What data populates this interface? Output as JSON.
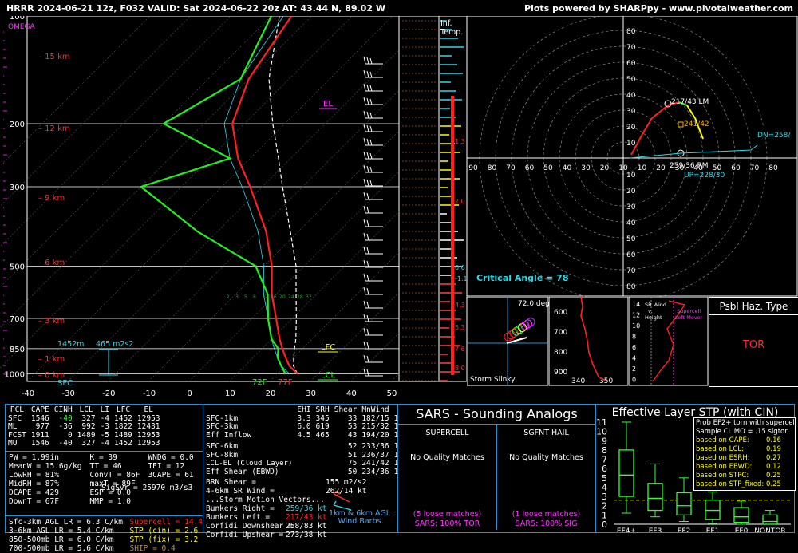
{
  "header": {
    "title": "HRRR 2024-06-21 12z, F032  VALID: Sat 2024-06-22 20z  AT: 43.44 N, 89.02 W",
    "credit": "Plots powered by SHARPpy - www.pivotalweather.com"
  },
  "skewt": {
    "omega_label": "OMEGA",
    "pressure_ticks": [
      "100",
      "200",
      "300",
      "500",
      "700",
      "850",
      "1000"
    ],
    "height_labels": [
      "15 km",
      "12 km",
      "9 km",
      "6 km",
      "3 km",
      "1 km",
      "0 km"
    ],
    "temp_ticks": [
      "-40",
      "-30",
      "-20",
      "-10",
      "0",
      "10",
      "20",
      "30",
      "40",
      "50"
    ],
    "el_label": "EL",
    "lfc_label": "LFC",
    "lcl_label": "LCL",
    "sfc_label": "SFC",
    "srh_depth": "1452m",
    "srh_value": "465 m2s2",
    "sfc_dewpoint": "72F",
    "sfc_temp": "77F",
    "inf_temp_label": "Inf.\nTemp.",
    "inf_values": [
      "1.3",
      "2.0",
      "0.6",
      "-1.1",
      "4.3",
      "5.3",
      "7.6",
      "8.0"
    ],
    "mixing_ratios": [
      "2",
      "3",
      "5",
      "8",
      "12",
      "16",
      "20",
      "24",
      "28",
      "32"
    ]
  },
  "hodograph": {
    "ring_labels": [
      "80",
      "70",
      "60",
      "50",
      "40",
      "30",
      "20",
      "10"
    ],
    "x_labels": [
      "90",
      "80",
      "70",
      "60",
      "50",
      "40",
      "30",
      "20",
      "10",
      "10",
      "20",
      "30",
      "40",
      "50",
      "60",
      "70",
      "80"
    ],
    "lm_label": "217/43 LM",
    "rm_label": "259/36 RM",
    "mean_label": "241/42",
    "dn_label": "DN=258/",
    "up_label": "UP=228/30",
    "critical_angle": "Critical Angle = 78"
  },
  "storm_slinky": {
    "title": "Storm Slinky",
    "angle": "72.0 deg"
  },
  "theta_panel": {
    "y_ticks": [
      "600",
      "700",
      "800",
      "900"
    ],
    "x_ticks": [
      "340",
      "350"
    ]
  },
  "srwind_panel": {
    "y_ticks": [
      "14",
      "12",
      "10",
      "8",
      "6",
      "4",
      "2",
      "0"
    ],
    "label1": "SR Wind\nv.\nHeight",
    "label2": "Supercell\nLeft Mover"
  },
  "hazard": {
    "title": "Psbl Haz. Type",
    "value": "TOR"
  },
  "parcels": {
    "headers": [
      "PCL",
      "CAPE",
      "CINH",
      "LCL",
      "LI",
      "LFC",
      "EL"
    ],
    "rows": [
      [
        "SFC",
        "1546",
        "-40",
        "327",
        "-4",
        "1452",
        "12953"
      ],
      [
        "ML",
        "977",
        "-36",
        "992",
        "-3",
        "1822",
        "12431"
      ],
      [
        "FCST",
        "1911",
        "0",
        "1489",
        "-5",
        "1489",
        "12953"
      ],
      [
        "MU",
        "1546",
        "-40",
        "327",
        "-4",
        "1452",
        "12953"
      ]
    ]
  },
  "thermo": {
    "col1": [
      "PW = 1.99in",
      "MeanW = 15.6g/kg",
      "LowRH = 81%",
      "MidRH = 87%",
      "DCAPE = 429",
      "DownT = 67F"
    ],
    "col2": [
      "K = 39",
      "TT = 46",
      "ConvT = 86F",
      "maxT = 89F",
      "ESP = 0.0",
      "MMP = 1.0"
    ],
    "col3": [
      "WNDG = 0.0",
      "TEI = 12",
      "3CAPE = 61",
      "",
      "",
      ""
    ],
    "sigsvr": "SigSvr = 25970 m3/s3"
  },
  "lapse": {
    "rates": [
      "Sfc-3km AGL LR = 6.3 C/km",
      "3-6km AGL LR = 5.4 C/km",
      "850-500mb LR = 6.0 C/km",
      "700-500mb LR = 5.6 C/km"
    ],
    "supercell": "Supercell = 14.4",
    "stp_cin": "STP (cin) = 2.6",
    "stp_fix": "STP (fix) = 3.2",
    "ship": "SHIP = 0.4"
  },
  "kinematics": {
    "headers": [
      "",
      "EHI",
      "SRH",
      "Shear",
      "MnWind",
      "SRW"
    ],
    "rows": [
      [
        "SFC-1km",
        "3.3",
        "345",
        "33",
        "182/15",
        "103/36"
      ],
      [
        "SFC-3km",
        "6.0",
        "619",
        "53",
        "215/32",
        "139/26"
      ],
      [
        "Eff Inflow",
        "4.5",
        "465",
        "43",
        "194/20",
        "113/33"
      ],
      [
        "SFC-6km",
        "",
        "",
        "52",
        "233/36",
        "155/16"
      ],
      [
        "SFC-8km",
        "",
        "",
        "51",
        "236/37",
        "161/15"
      ],
      [
        "LCL-EL (Cloud Layer)",
        "",
        "",
        "75",
        "241/42",
        "187/14"
      ],
      [
        "Eff Shear (EBWD)",
        "",
        "",
        "50",
        "234/36",
        "157/16"
      ]
    ],
    "brn": [
      "BRN Shear =",
      "155 m2/s2"
    ],
    "sr46": [
      "4-6km SR Wind =",
      "262/14 kt"
    ],
    "motion_title": "...Storm Motion Vectors...",
    "motions": [
      [
        "Bunkers Right =",
        "259/36 kt"
      ],
      [
        "Bunkers Left =",
        "217/43 kt"
      ],
      [
        "Corfidi Downshear =",
        "258/83 kt"
      ],
      [
        "Corfidi Upshear =",
        "273/38 kt"
      ]
    ],
    "barbs_label": "1km & 6km AGL\nWind Barbs"
  },
  "sars": {
    "title": "SARS - Sounding Analogs",
    "supercell_header": "SUPERCELL",
    "hail_header": "SGFNT HAIL",
    "supercell_match": "No Quality Matches",
    "hail_match": "No Quality Matches",
    "supercell_loose": "(5 loose matches)",
    "hail_loose": "(1 loose matches)",
    "supercell_pct": "SARS: 100% TOR",
    "hail_pct": "SARS: 100% SIG"
  },
  "stp_panel": {
    "title": "Effective Layer STP (with CIN)",
    "prob_title": "Prob EF2+ torn with supercell",
    "climo": "Sample CLIMO = .15 sigtor",
    "probs": [
      [
        "based on CAPE:",
        "0.16"
      ],
      [
        "based on LCL:",
        "0.19"
      ],
      [
        "based on ESRH:",
        "0.27"
      ],
      [
        "based on EBWD:",
        "0.12"
      ],
      [
        "based on STPC:",
        "0.25"
      ],
      [
        "based on STP_fixed:",
        "0.25"
      ]
    ],
    "y_ticks": [
      "11",
      "10",
      "9",
      "8",
      "7",
      "6",
      "5",
      "4",
      "3",
      "2",
      "1",
      "0"
    ],
    "categories": [
      "EF4+",
      "EF3",
      "EF2",
      "EF1",
      "EF0",
      "NONTOR"
    ]
  },
  "chart_data": [
    {
      "type": "line",
      "title": "Skew-T",
      "pressure_ticks": [
        100,
        200,
        300,
        500,
        700,
        850,
        1000
      ],
      "temperature_ticks": [
        -40,
        -30,
        -20,
        -10,
        0,
        10,
        20,
        30,
        40,
        50
      ],
      "series": [
        {
          "name": "temperature",
          "pressure": [
            1000,
            950,
            900,
            850,
            800,
            700,
            600,
            500,
            400,
            300,
            250,
            200,
            150,
            100
          ],
          "temp_c": [
            25,
            21,
            18,
            15,
            12,
            6,
            -1,
            -8,
            -18,
            -33,
            -43,
            -53,
            -60,
            -65
          ]
        },
        {
          "name": "dewpoint",
          "pressure": [
            1000,
            950,
            900,
            850,
            800,
            700,
            600,
            500,
            400,
            300,
            250,
            200,
            150,
            100
          ],
          "temp_c": [
            22,
            19,
            16,
            14,
            10,
            4,
            -2,
            -12,
            -35,
            -60,
            -45,
            -70,
            -62,
            -70
          ]
        }
      ]
    },
    {
      "type": "line",
      "title": "Hodograph",
      "series": [
        {
          "name": "hodograph",
          "u": [
            5,
            12,
            18,
            28,
            35,
            40,
            45,
            50
          ],
          "v": [
            2,
            15,
            25,
            33,
            35,
            33,
            25,
            12
          ]
        }
      ]
    },
    {
      "type": "bar",
      "title": "Effective Layer STP (with CIN)",
      "categories": [
        "EF4+",
        "EF3",
        "EF2",
        "EF1",
        "EF0",
        "NONTOR"
      ],
      "boxes": [
        {
          "whisker_low": 1.2,
          "q1": 3.0,
          "median": 5.3,
          "q3": 8.0,
          "whisker_high": 11.0
        },
        {
          "whisker_low": 0.8,
          "q1": 1.5,
          "median": 2.8,
          "q3": 4.4,
          "whisker_high": 6.5
        },
        {
          "whisker_low": 0.3,
          "q1": 1.0,
          "median": 2.0,
          "q3": 3.4,
          "whisker_high": 5.0
        },
        {
          "whisker_low": 0.1,
          "q1": 0.5,
          "median": 1.5,
          "q3": 2.6,
          "whisker_high": 3.5
        },
        {
          "whisker_low": 0.0,
          "q1": 0.2,
          "median": 0.8,
          "q3": 1.8,
          "whisker_high": 2.5
        },
        {
          "whisker_low": 0.0,
          "q1": 0.0,
          "median": 0.3,
          "q3": 1.0,
          "whisker_high": 1.5
        }
      ],
      "current_value": 2.6,
      "ylim": [
        0,
        11
      ]
    }
  ]
}
